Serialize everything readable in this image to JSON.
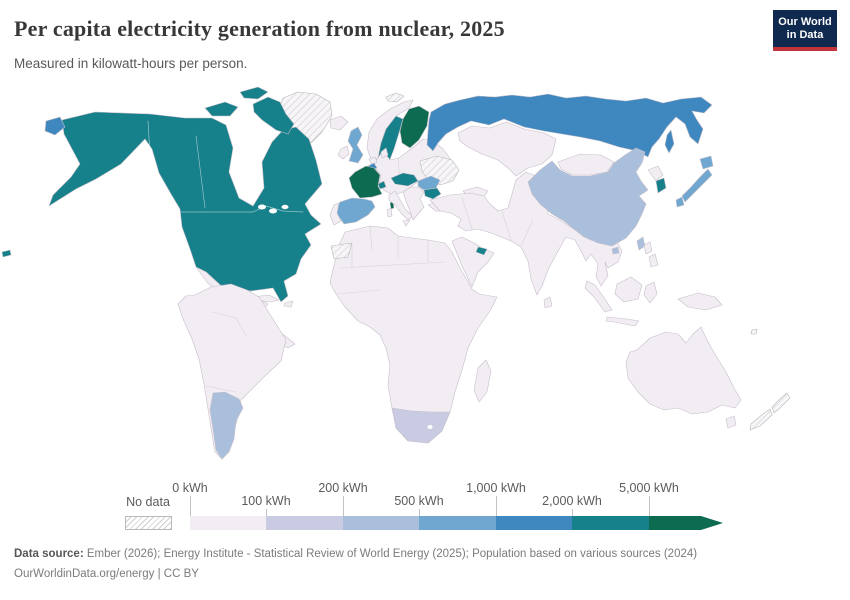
{
  "header": {
    "title": "Per capita electricity generation from nuclear, 2025",
    "subtitle": "Measured in kilowatt-hours per person.",
    "logo": {
      "line1": "Our World",
      "line2": "in Data"
    }
  },
  "legend": {
    "no_data_label": "No data",
    "ticks": [
      "0 kWh",
      "100 kWh",
      "200 kWh",
      "500 kWh",
      "1,000 kWh",
      "2,000 kWh",
      "5,000 kWh"
    ]
  },
  "footer": {
    "source_label": "Data source:",
    "source_text": " Ember (2026); Energy Institute - Statistical Review of World Energy (2025); Population based on various sources (2024)",
    "link_line": "OurWorldinData.org/energy | CC BY"
  },
  "chart_data": {
    "type": "choropleth",
    "title": "Per capita electricity generation from nuclear, 2025",
    "unit": "kilowatt-hours per person",
    "legend_position": "bottom",
    "bin_thresholds_kwh": [
      0,
      100,
      200,
      500,
      1000,
      2000,
      5000
    ],
    "bin_labels": [
      "0 kWh",
      "100 kWh",
      "200 kWh",
      "500 kWh",
      "1,000 kWh",
      "2,000 kWh",
      "5,000 kWh"
    ],
    "bin_colors": [
      "#f2ecf3",
      "#c9cbe2",
      "#a9bfdc",
      "#6fa7d0",
      "#3e88bf",
      "#16808b",
      "#0c6b51"
    ],
    "no_data_color": "hatched",
    "regions_by_bin": {
      "no_data": [
        "Greenland",
        "Svalbard",
        "Ukraine",
        "Western Sahara",
        "New Zealand",
        "Pacific islands"
      ],
      "0-100 kWh": [
        "Mexico",
        "Brazil",
        "most of Africa",
        "Middle East",
        "India",
        "Southeast Asia",
        "Australia",
        "Norway",
        "Germany",
        "Italy",
        "Turkey",
        "Kazakhstan",
        "Mongolia"
      ],
      "100-200 kWh": [
        "South Africa"
      ],
      "200-500 kWh": [
        "China",
        "Argentina",
        "Taiwan"
      ],
      "500-1000 kWh": [
        "United Kingdom",
        "Spain",
        "Japan",
        "Romania"
      ],
      "1000-2000 kWh": [
        "Russia",
        "Belgium"
      ],
      "2000-5000 kWh": [
        "United States",
        "Canada",
        "Sweden",
        "Switzerland",
        "Czechia",
        "Slovakia",
        "Hungary",
        "Bulgaria",
        "Armenia",
        "South Korea",
        "United Arab Emirates"
      ],
      "5000+ kWh": [
        "France",
        "Finland"
      ]
    }
  }
}
